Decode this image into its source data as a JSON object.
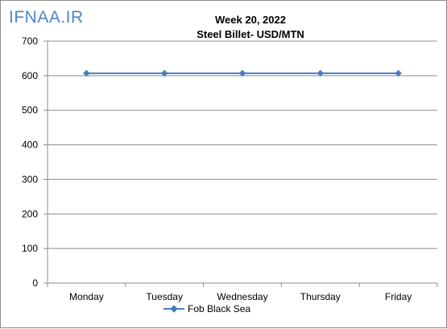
{
  "watermark": {
    "text": "IFNAA.IR",
    "color": "#4f86c6"
  },
  "chart_data": {
    "type": "line",
    "title": "Week 20, 2022",
    "subtitle": "Steel Billet- USD/MTN",
    "xlabel": "",
    "ylabel": "",
    "categories": [
      "Monday",
      "Tuesday",
      "Wednesday",
      "Thursday",
      "Friday"
    ],
    "series": [
      {
        "name": "Fob Black Sea",
        "values": [
          607,
          607,
          607,
          607,
          607
        ],
        "color": "#4a7ebb"
      }
    ],
    "ylim": [
      0,
      700
    ],
    "yticks": [
      0,
      100,
      200,
      300,
      400,
      500,
      600,
      700
    ],
    "grid": true,
    "legend_position": "bottom"
  }
}
